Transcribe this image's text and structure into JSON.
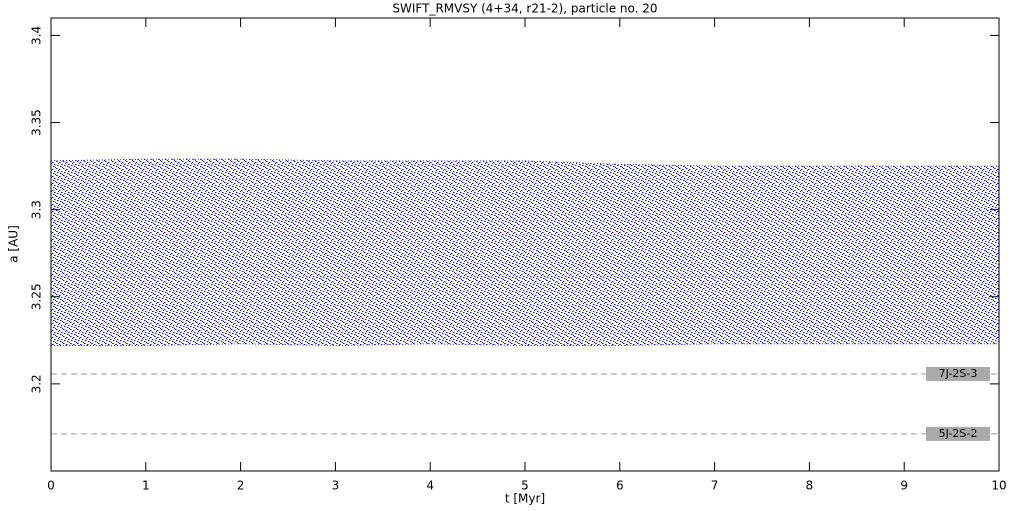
{
  "chart_data": {
    "type": "band",
    "title": "SWIFT_RMVSY (4+34, r21-2), particle no. 20",
    "xlabel": "t [Myr]",
    "ylabel": "a [AU]",
    "x": [
      0,
      1,
      2,
      3,
      4,
      5,
      6,
      7,
      8,
      9,
      10
    ],
    "band": {
      "color": "#0000ff",
      "upper": [
        3.328,
        3.329,
        3.329,
        3.328,
        3.328,
        3.328,
        3.326,
        3.325,
        3.325,
        3.325,
        3.325
      ],
      "lower": [
        3.222,
        3.222,
        3.223,
        3.222,
        3.223,
        3.222,
        3.222,
        3.223,
        3.223,
        3.223,
        3.223
      ]
    },
    "resonances": [
      {
        "label": "7J-2S-3",
        "value": 3.2057
      },
      {
        "label": "5J-2S-2",
        "value": 3.1713
      }
    ],
    "xlim": [
      0,
      10
    ],
    "xticks": [
      0,
      1,
      2,
      3,
      4,
      5,
      6,
      7,
      8,
      9,
      10
    ],
    "ylim": [
      3.15,
      3.41
    ],
    "yticks": [
      3.2,
      3.25,
      3.3,
      3.35,
      3.4
    ]
  }
}
